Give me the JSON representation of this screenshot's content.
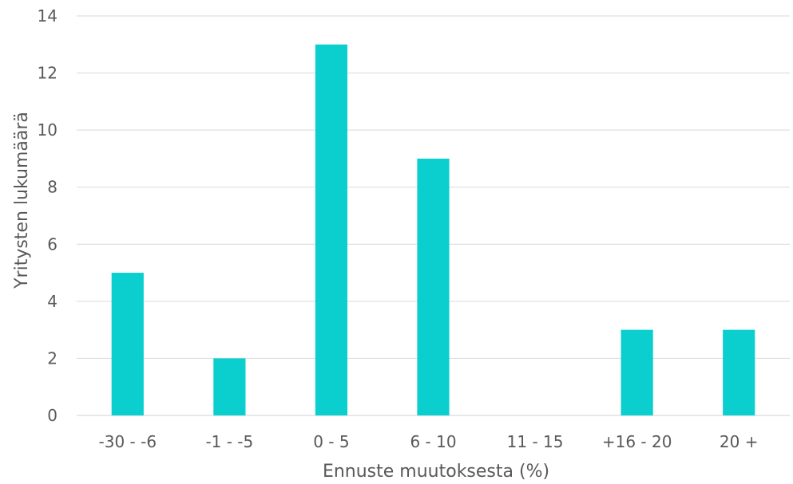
{
  "chart_data": {
    "type": "bar",
    "categories": [
      "-30 - -6",
      "-1 - -5",
      "0 - 5",
      "6 - 10",
      "11 - 15",
      "+16 - 20",
      "20 +"
    ],
    "values": [
      5,
      2,
      13,
      9,
      0,
      3,
      3
    ],
    "title": "",
    "xlabel": "Ennuste muutoksesta (%)",
    "ylabel": "Yritysten lukumäärä",
    "ylim": [
      0,
      14
    ],
    "yticks": [
      "0",
      "2",
      "4",
      "6",
      "8",
      "10",
      "12",
      "14"
    ],
    "grid": true,
    "legend": "none",
    "bar_color": "#0bcfcf"
  }
}
